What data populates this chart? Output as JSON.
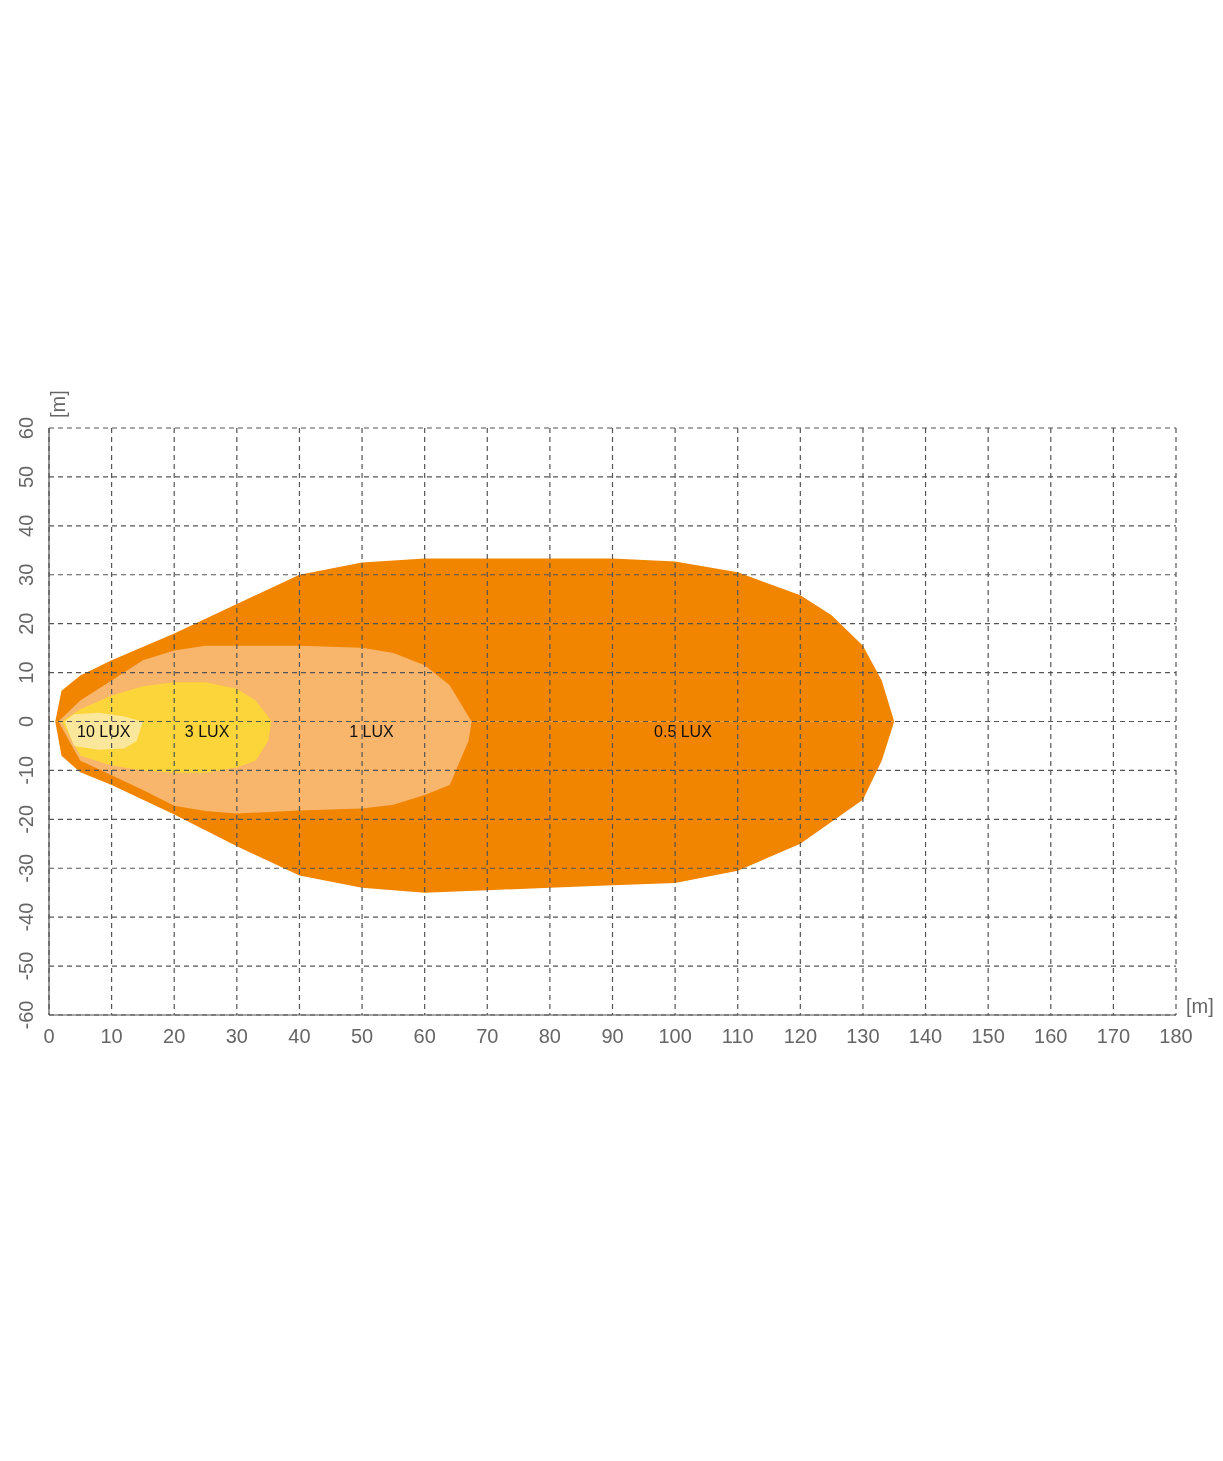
{
  "chart_data": {
    "type": "area",
    "xlabel": "[m]",
    "ylabel": "[m]",
    "xlim": [
      0,
      180
    ],
    "ylim": [
      -60,
      60
    ],
    "xticks": [
      0,
      10,
      20,
      30,
      40,
      50,
      60,
      70,
      80,
      90,
      100,
      110,
      120,
      130,
      140,
      150,
      160,
      170,
      180
    ],
    "yticks": [
      -60,
      -50,
      -40,
      -30,
      -20,
      -10,
      0,
      10,
      20,
      30,
      40,
      50,
      60
    ],
    "grid": true,
    "legend": false,
    "line_style": "dashed",
    "series": [
      {
        "name": "0.5 LUX",
        "color": "#f28500",
        "x": [
          1,
          2,
          5,
          10,
          20,
          30,
          40,
          50,
          60,
          70,
          80,
          90,
          100,
          110,
          120,
          125,
          130,
          133,
          135
        ],
        "values": [
          0,
          6.3,
          9.4,
          12.5,
          18,
          24,
          30,
          32.5,
          33.3,
          33.3,
          33.3,
          33.3,
          32.7,
          30.5,
          25.8,
          21.7,
          15.5,
          8.4,
          0
        ]
      },
      {
        "color": "#f28500",
        "x": [
          1,
          2,
          5,
          10,
          20,
          30,
          40,
          50,
          60,
          70,
          80,
          90,
          100,
          110,
          120,
          125,
          130,
          133,
          135
        ],
        "values": [
          0,
          -7,
          -10.4,
          -13,
          -19,
          -25.5,
          -31.5,
          -34,
          -35,
          -34.5,
          -34,
          -33.5,
          -33,
          -30.5,
          -25,
          -20.5,
          -16,
          -8,
          0
        ]
      },
      {
        "name": "1 LUX",
        "color": "#f8b56c",
        "x": [
          1.5,
          5,
          10,
          15,
          20,
          25,
          30,
          40,
          50,
          55,
          60,
          64,
          67,
          67.5
        ],
        "values": [
          0,
          4.3,
          8.4,
          12.5,
          14.5,
          15.5,
          15.5,
          15.5,
          15.1,
          14,
          11.5,
          7.4,
          1,
          0
        ]
      },
      {
        "color": "#f8b56c",
        "x": [
          1.5,
          5,
          10,
          15,
          20,
          25,
          30,
          40,
          50,
          55,
          60,
          64,
          67,
          67.5
        ],
        "values": [
          0,
          -8,
          -11,
          -14,
          -17.2,
          -18.3,
          -18.8,
          -18.2,
          -17.8,
          -17,
          -15,
          -13,
          -4,
          0
        ]
      },
      {
        "name": "3 LUX",
        "color": "#fbd53a",
        "x": [
          2,
          5,
          10,
          15,
          20,
          25,
          30,
          33,
          35,
          35.5
        ],
        "values": [
          0,
          2.5,
          5.3,
          7.2,
          8,
          8,
          6.7,
          4.3,
          1,
          0
        ]
      },
      {
        "color": "#fbd53a",
        "x": [
          2,
          5,
          10,
          15,
          20,
          25,
          30,
          33,
          35,
          35.5
        ],
        "values": [
          0,
          -7,
          -9,
          -10,
          -10.5,
          -10.5,
          -9.4,
          -8,
          -4,
          0
        ]
      },
      {
        "name": "10 LUX",
        "color": "#fce89a",
        "x": [
          2.5,
          4,
          8,
          12,
          14,
          15
        ],
        "values": [
          0,
          1.5,
          1.8,
          1,
          0.3,
          0
        ]
      },
      {
        "color": "#fbe79b",
        "x": [
          2.5,
          4,
          8,
          12,
          14,
          15
        ],
        "values": [
          0,
          -5,
          -5.8,
          -5.5,
          -4,
          0
        ]
      }
    ]
  }
}
